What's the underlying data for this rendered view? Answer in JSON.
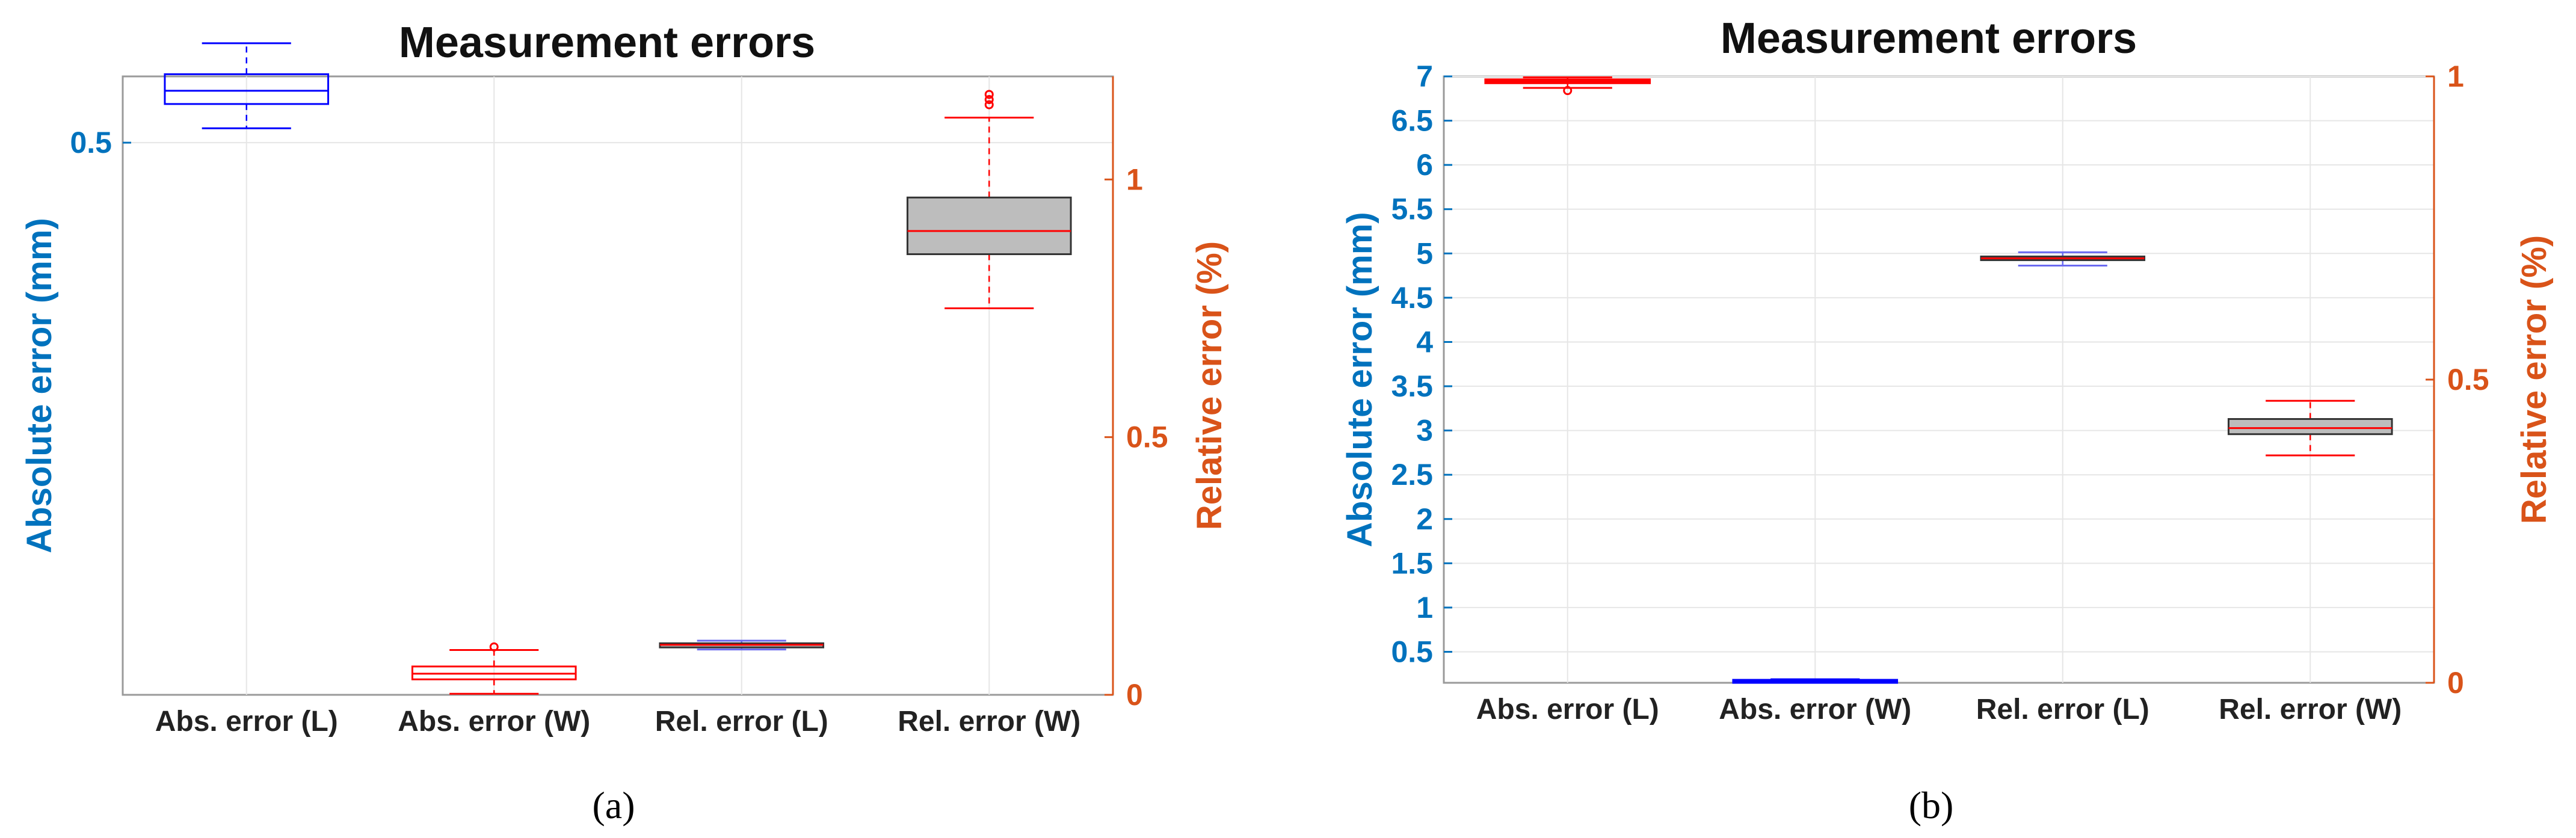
{
  "colors": {
    "left_axis": "#0072BD",
    "right_axis": "#D95319",
    "grid": "#e6e6e6",
    "blue_box": "#0000ff",
    "red_box": "#ff0000",
    "gray_fill": "#bdbdbd",
    "gray_edge": "#333333"
  },
  "chart_data": [
    {
      "type": "box",
      "panel": "a",
      "caption": "(a)",
      "title": "Measurement errors",
      "ylabel_left": "Absolute error (mm)",
      "ylabel_right": "Relative error (%)",
      "categories": [
        "Abs. error (L)",
        "Abs. error (W)",
        "Rel. error (L)",
        "Rel. error (W)"
      ],
      "left_axis": {
        "ylim": [
          0,
          0.56
        ],
        "ticks": [
          0.5
        ],
        "tick_labels": [
          "0.5"
        ]
      },
      "right_axis": {
        "ylim": [
          0,
          1.2
        ],
        "ticks": [
          0,
          0.5,
          1
        ],
        "tick_labels": [
          "0",
          "0.5",
          "1"
        ]
      },
      "grid": true,
      "boxes": [
        {
          "category": "Abs. error (L)",
          "axis": "left",
          "style": "blue",
          "whisker_low": 0.513,
          "q1": 0.535,
          "median": 0.547,
          "q3": 0.562,
          "whisker_high": 0.59,
          "outliers": []
        },
        {
          "category": "Abs. error (W)",
          "axis": "right",
          "style": "red",
          "whisker_low": 0.002,
          "q1": 0.03,
          "median": 0.041,
          "q3": 0.055,
          "whisker_high": 0.087,
          "outliers": [
            0.093
          ]
        },
        {
          "category": "Rel. error (L)",
          "axis": "right",
          "style": "gray-thin",
          "whisker_low": 0.088,
          "q1": 0.092,
          "median": 0.097,
          "q3": 0.1,
          "whisker_high": 0.105,
          "outliers": []
        },
        {
          "category": "Rel. error (W)",
          "axis": "right",
          "style": "gray",
          "whisker_low": 0.75,
          "q1": 0.855,
          "median": 0.9,
          "q3": 0.965,
          "whisker_high": 1.12,
          "outliers": [
            1.145,
            1.155,
            1.165
          ]
        }
      ]
    },
    {
      "type": "box",
      "panel": "b",
      "caption": "(b)",
      "title": "Measurement errors",
      "ylabel_left": "Absolute error (mm)",
      "ylabel_right": "Relative error (%)",
      "categories": [
        "Abs. error (L)",
        "Abs. error (W)",
        "Rel. error (L)",
        "Rel. error (W)"
      ],
      "left_axis": {
        "ylim": [
          0.15,
          7.0
        ],
        "ticks": [
          0.5,
          1,
          1.5,
          2,
          2.5,
          3,
          3.5,
          4,
          4.5,
          5,
          5.5,
          6,
          6.5,
          7
        ],
        "tick_labels": [
          "0.5",
          "1",
          "1.5",
          "2",
          "2.5",
          "3",
          "3.5",
          "4",
          "4.5",
          "5",
          "5.5",
          "6",
          "6.5",
          "7"
        ]
      },
      "right_axis": {
        "ylim": [
          0,
          1
        ],
        "ticks": [
          0,
          0.5,
          1
        ],
        "tick_labels": [
          "0",
          "0.5",
          "1"
        ]
      },
      "grid": true,
      "boxes": [
        {
          "category": "Abs. error (L)",
          "axis": "left",
          "style": "red-thick",
          "whisker_low": 6.87,
          "q1": 6.93,
          "median": 6.95,
          "q3": 6.96,
          "whisker_high": 6.99,
          "outliers": [
            6.84
          ]
        },
        {
          "category": "Abs. error (W)",
          "axis": "left",
          "style": "blue-thick",
          "whisker_low": 0.16,
          "q1": 0.17,
          "median": 0.175,
          "q3": 0.18,
          "whisker_high": 0.19,
          "outliers": []
        },
        {
          "category": "Rel. error (L)",
          "axis": "right",
          "style": "gray-thin",
          "whisker_low": 0.688,
          "q1": 0.697,
          "median": 0.7,
          "q3": 0.703,
          "whisker_high": 0.71,
          "outliers": []
        },
        {
          "category": "Rel. error (W)",
          "axis": "right",
          "style": "gray",
          "whisker_low": 0.375,
          "q1": 0.41,
          "median": 0.42,
          "q3": 0.435,
          "whisker_high": 0.465,
          "outliers": []
        }
      ]
    }
  ]
}
